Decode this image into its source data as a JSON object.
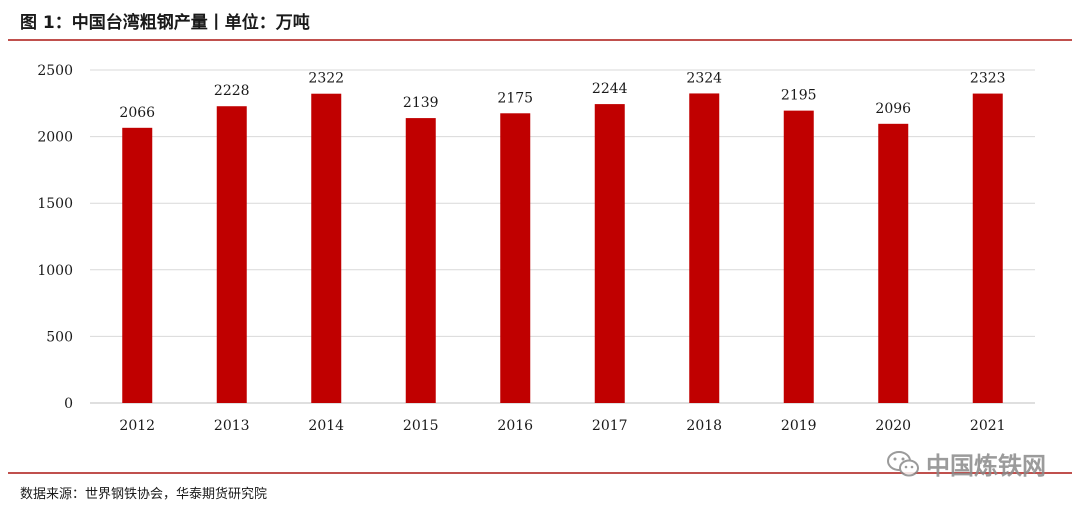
{
  "header": {
    "title": "图 1：中国台湾粗钢产量丨单位：万吨"
  },
  "footer": {
    "source": "数据来源：世界钢铁协会，华泰期货研究院"
  },
  "watermark": {
    "text": "中国炼铁网",
    "icon": "wechat-logo-icon"
  },
  "colors": {
    "bar": "#c00000",
    "rule": "#c0504d",
    "grid": "#d9d9d9"
  },
  "chart_data": {
    "type": "bar",
    "title": "",
    "xlabel": "",
    "ylabel": "",
    "categories": [
      "2012",
      "2013",
      "2014",
      "2015",
      "2016",
      "2017",
      "2018",
      "2019",
      "2020",
      "2021"
    ],
    "values": [
      2066,
      2228,
      2322,
      2139,
      2175,
      2244,
      2324,
      2195,
      2096,
      2323
    ],
    "ylim": [
      0,
      2500
    ],
    "yticks": [
      "0",
      "500",
      "1000",
      "1500",
      "2000",
      "2500"
    ],
    "data_labels": true,
    "grid": true
  }
}
